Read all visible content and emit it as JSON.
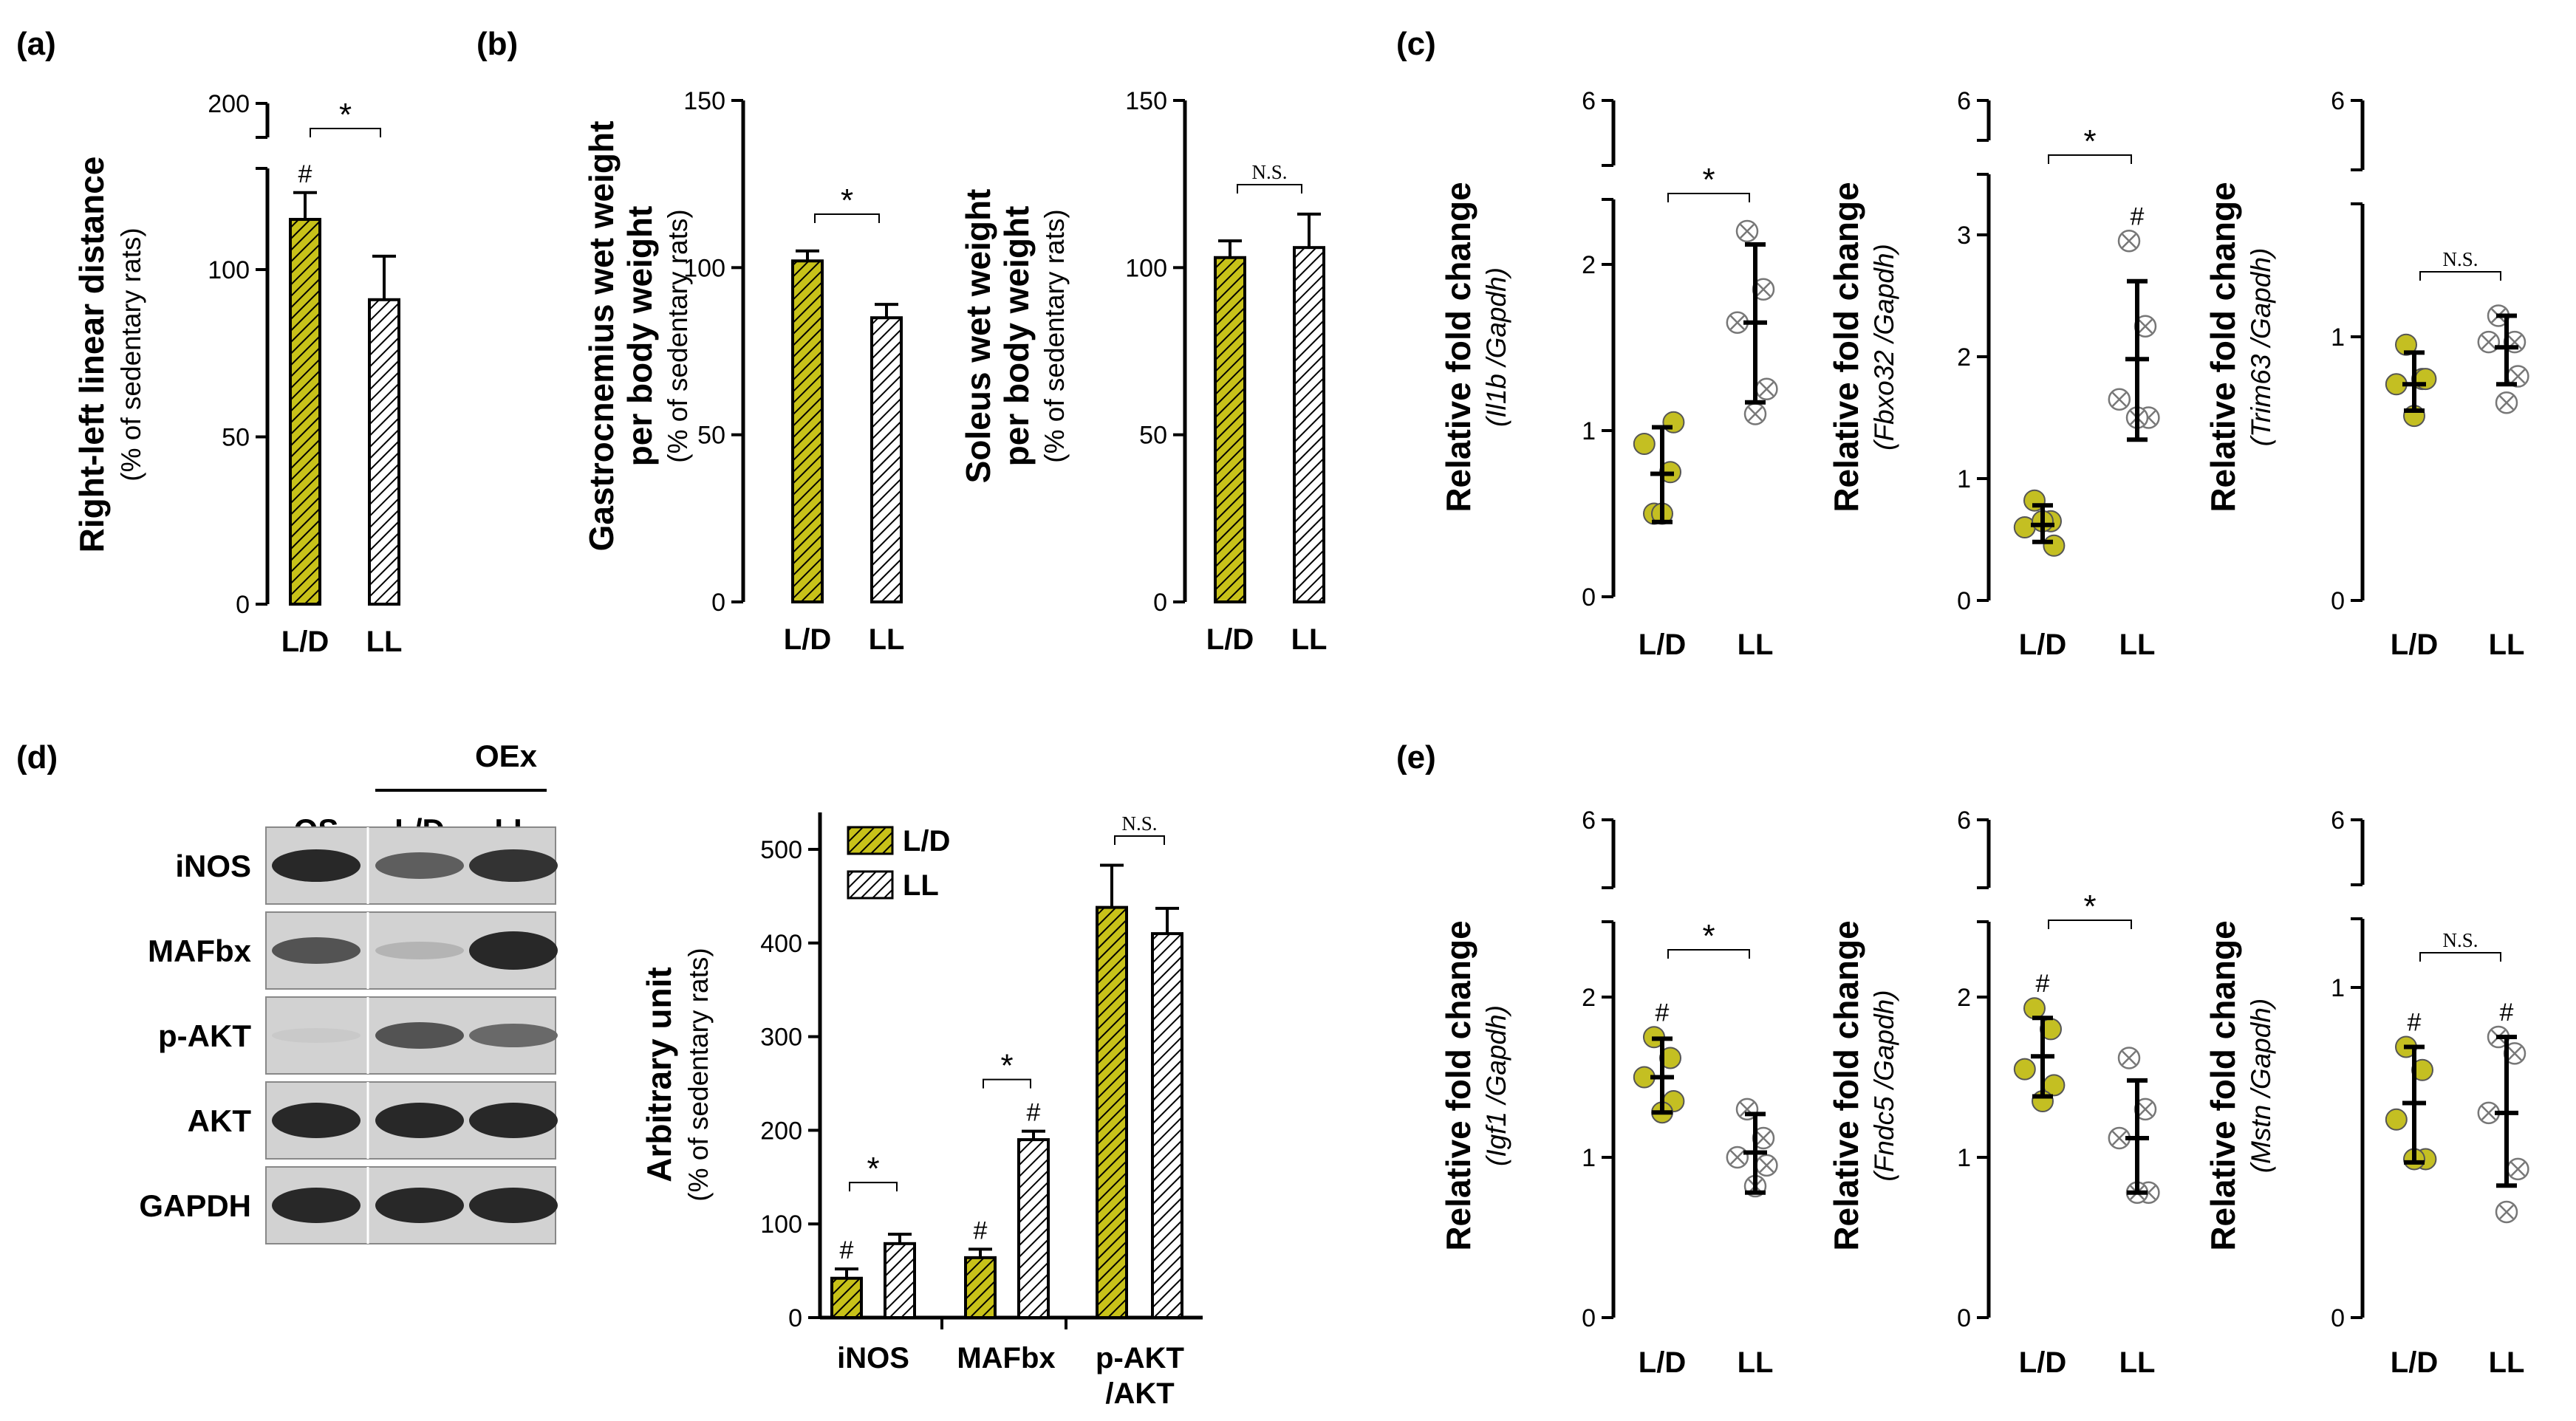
{
  "colors": {
    "ld": "#c8c219",
    "ll": "#ffffff",
    "ink": "#000000",
    "dot_ld": "#c4bf22",
    "dot_ll": "#ffffff"
  },
  "panels": {
    "a": "(a)",
    "b": "(b)",
    "c": "(c)",
    "d": "(d)",
    "e": "(e)"
  },
  "blot": {
    "group_label": "OEx",
    "columns": [
      "OS",
      "L/D",
      "LL"
    ],
    "rows": [
      "iNOS",
      "MAFbx",
      "p-AKT",
      "AKT",
      "GAPDH"
    ]
  },
  "chart_data": [
    {
      "id": "a",
      "type": "bar",
      "title": "",
      "ylabel": "Right-left linear distance",
      "ylabel_sub": "(% of sedentary rats)",
      "categories": [
        "L/D",
        "LL"
      ],
      "values": [
        115,
        91
      ],
      "errors": [
        8,
        13
      ],
      "ylim": [
        0,
        200
      ],
      "yticks": [
        0,
        50,
        100,
        200
      ],
      "axis_break": true,
      "annotations": {
        "hash": [
          "#",
          ""
        ],
        "sig": "*"
      }
    },
    {
      "id": "b1",
      "type": "bar",
      "ylabel": "Gastrocnemius wet weight",
      "ylabel2": "per body weight",
      "ylabel_sub": "(% of sedentary rats)",
      "categories": [
        "L/D",
        "LL"
      ],
      "values": [
        102,
        85
      ],
      "errors": [
        3,
        4
      ],
      "ylim": [
        0,
        150
      ],
      "yticks": [
        0,
        50,
        100,
        150
      ],
      "annotations": {
        "sig": "*"
      }
    },
    {
      "id": "b2",
      "type": "bar",
      "ylabel": "Soleus wet weight",
      "ylabel2": "per body weight",
      "ylabel_sub": "(% of sedentary rats)",
      "categories": [
        "L/D",
        "LL"
      ],
      "values": [
        103,
        106
      ],
      "errors": [
        5,
        10
      ],
      "ylim": [
        0,
        150
      ],
      "yticks": [
        0,
        50,
        100,
        150
      ],
      "annotations": {
        "sig": "N.S."
      }
    },
    {
      "id": "c1",
      "type": "scatter",
      "ylabel": "Relative fold change",
      "ylabel_sub": "(Il1b /Gapdh)",
      "categories": [
        "L/D",
        "LL"
      ],
      "ylim": [
        0,
        2.5
      ],
      "yticks": [
        "0",
        "1",
        "2",
        "6"
      ],
      "axis_break": true,
      "groups": [
        {
          "name": "L/D",
          "points": [
            0.5,
            0.75,
            0.92,
            1.05,
            0.5
          ],
          "mean": 0.74,
          "sd_low": 0.45,
          "sd_high": 1.02
        },
        {
          "name": "LL",
          "points": [
            2.2,
            1.85,
            1.65,
            1.25,
            1.1
          ],
          "mean": 1.65,
          "sd_low": 1.17,
          "sd_high": 2.12
        }
      ],
      "annotations": {
        "sig": "*"
      }
    },
    {
      "id": "c2",
      "type": "scatter",
      "ylabel": "Relative fold change",
      "ylabel_sub": "(Fbxo32 /Gapdh)",
      "categories": [
        "L/D",
        "LL"
      ],
      "ylim": [
        0,
        3.4
      ],
      "yticks": [
        "0",
        "1",
        "2",
        "3",
        "6"
      ],
      "axis_break": true,
      "groups": [
        {
          "name": "L/D",
          "points": [
            0.82,
            0.65,
            0.6,
            0.45,
            0.65
          ],
          "mean": 0.62,
          "sd_low": 0.48,
          "sd_high": 0.78
        },
        {
          "name": "LL",
          "points": [
            2.95,
            2.25,
            1.65,
            1.5,
            1.5
          ],
          "mean": 1.98,
          "sd_low": 1.32,
          "sd_high": 2.62
        }
      ],
      "annotations": {
        "hash": [
          "",
          "#"
        ],
        "sig": "*"
      }
    },
    {
      "id": "c3",
      "type": "scatter",
      "ylabel": "Relative fold change",
      "ylabel_sub": "(Trim63 /Gapdh)",
      "categories": [
        "L/D",
        "LL"
      ],
      "ylim": [
        0,
        1.5
      ],
      "yticks": [
        "0",
        "1",
        "6"
      ],
      "axis_break": true,
      "groups": [
        {
          "name": "L/D",
          "points": [
            0.97,
            0.84,
            0.82,
            0.84,
            0.7
          ],
          "mean": 0.82,
          "sd_low": 0.72,
          "sd_high": 0.94
        },
        {
          "name": "LL",
          "points": [
            1.08,
            0.98,
            0.98,
            0.85,
            0.75
          ],
          "mean": 0.96,
          "sd_low": 0.82,
          "sd_high": 1.08
        }
      ],
      "annotations": {
        "sig": "N.S."
      }
    },
    {
      "id": "d",
      "type": "bar",
      "ylabel": "Arbitrary unit",
      "ylabel_sub": "(% of sedentary rats)",
      "categories": [
        "iNOS",
        "MAFbx",
        "p-AKT /AKT"
      ],
      "series": [
        {
          "name": "L/D",
          "values": [
            42,
            64,
            438
          ],
          "errors": [
            10,
            9,
            45
          ]
        },
        {
          "name": "LL",
          "values": [
            79,
            190,
            410
          ],
          "errors": [
            10,
            9,
            27
          ]
        }
      ],
      "ylim": [
        0,
        500
      ],
      "yticks": [
        0,
        100,
        200,
        300,
        400,
        500
      ],
      "legend": "top-left",
      "annotations": {
        "hash": [
          [
            "#",
            ""
          ],
          [
            "#",
            "#"
          ],
          [
            "",
            ""
          ]
        ],
        "sig": [
          "*",
          "*",
          "N.S."
        ]
      }
    },
    {
      "id": "e1",
      "type": "scatter",
      "ylabel": "Relative fold change",
      "ylabel_sub": "(Igf1 /Gapdh)",
      "categories": [
        "L/D",
        "LL"
      ],
      "ylim": [
        0,
        2.5
      ],
      "yticks": [
        "0",
        "1",
        "2",
        "6"
      ],
      "axis_break": true,
      "groups": [
        {
          "name": "L/D",
          "points": [
            1.75,
            1.62,
            1.5,
            1.35,
            1.28
          ],
          "mean": 1.5,
          "sd_low": 1.28,
          "sd_high": 1.74
        },
        {
          "name": "LL",
          "points": [
            1.3,
            1.12,
            1.0,
            0.95,
            0.82
          ],
          "mean": 1.03,
          "sd_low": 0.78,
          "sd_high": 1.27
        }
      ],
      "annotations": {
        "hash": [
          "#",
          ""
        ],
        "sig": "*"
      }
    },
    {
      "id": "e2",
      "type": "scatter",
      "ylabel": "Relative fold change",
      "ylabel_sub": "(Fndc5 /Gapdh)",
      "categories": [
        "L/D",
        "LL"
      ],
      "ylim": [
        0,
        2.5
      ],
      "yticks": [
        "0",
        "1",
        "2",
        "6"
      ],
      "axis_break": true,
      "groups": [
        {
          "name": "L/D",
          "points": [
            1.93,
            1.8,
            1.55,
            1.45,
            1.35
          ],
          "mean": 1.63,
          "sd_low": 1.38,
          "sd_high": 1.87
        },
        {
          "name": "LL",
          "points": [
            1.62,
            1.3,
            1.12,
            0.78,
            0.78
          ],
          "mean": 1.12,
          "sd_low": 0.78,
          "sd_high": 1.48
        }
      ],
      "annotations": {
        "hash": [
          "#",
          ""
        ],
        "sig": "*"
      }
    },
    {
      "id": "e3",
      "type": "scatter",
      "ylabel": "Relative fold change",
      "ylabel_sub": "(Mstn /Gapdh)",
      "categories": [
        "L/D",
        "LL"
      ],
      "ylim": [
        0,
        1.5
      ],
      "yticks": [
        "0",
        "1",
        "6"
      ],
      "axis_break": true,
      "groups": [
        {
          "name": "L/D",
          "points": [
            0.82,
            0.75,
            0.6,
            0.48,
            0.48
          ],
          "mean": 0.65,
          "sd_low": 0.47,
          "sd_high": 0.82
        },
        {
          "name": "LL",
          "points": [
            0.85,
            0.8,
            0.62,
            0.45,
            0.32
          ],
          "mean": 0.62,
          "sd_low": 0.4,
          "sd_high": 0.85
        }
      ],
      "annotations": {
        "hash": [
          "#",
          "#"
        ],
        "sig": "N.S."
      }
    }
  ]
}
